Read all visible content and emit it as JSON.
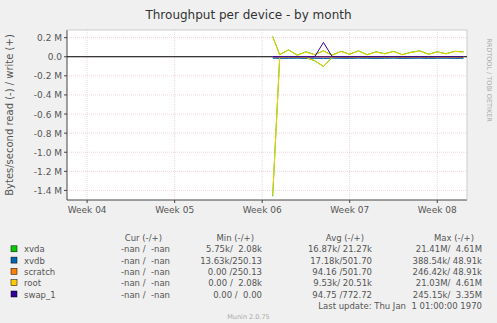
{
  "chart_data": {
    "type": "line",
    "title": "Throughput per device - by month",
    "y_label": "Bytes/second read (-) / write (+)",
    "credit": "RRDTOOL / TOBI OETIKER",
    "last_update": "Last update: Thu Jan  1 01:00:00 1970",
    "footer": "Munin 2.0.75",
    "grid": true,
    "legend": "bottom",
    "stat_headers": [
      "Cur (-/+)",
      "Min (-/+)",
      "Avg (-/+)",
      "Max (-/+)"
    ],
    "xlim": [
      3.77,
      8.34
    ],
    "xticks": [
      {
        "value": 4,
        "label": "Week 04"
      },
      {
        "value": 5,
        "label": "Week 05"
      },
      {
        "value": 6,
        "label": "Week 06"
      },
      {
        "value": 7,
        "label": "Week 07"
      },
      {
        "value": 8,
        "label": "Week 08"
      }
    ],
    "ylim": [
      -1500000,
      280000
    ],
    "yticks": [
      {
        "value": 200000,
        "label": "0.2 M"
      },
      {
        "value": 0,
        "label": "0.0"
      },
      {
        "value": -200000,
        "label": "-0.2 M"
      },
      {
        "value": -400000,
        "label": "-0.4 M"
      },
      {
        "value": -600000,
        "label": "-0.6 M"
      },
      {
        "value": -800000,
        "label": "-0.8 M"
      },
      {
        "value": -1000000,
        "label": "-1.0 M"
      },
      {
        "value": -1200000,
        "label": "-1.2 M"
      },
      {
        "value": -1400000,
        "label": "-1.4 M"
      }
    ],
    "x": [
      6.12,
      6.2,
      6.3,
      6.4,
      6.5,
      6.6,
      6.7,
      6.8,
      6.9,
      7.0,
      7.1,
      7.2,
      7.3,
      7.4,
      7.5,
      7.6,
      7.7,
      7.8,
      7.9,
      8.0,
      8.1,
      8.2,
      8.3
    ],
    "series": [
      {
        "name": "xvda",
        "color": "#00cc00",
        "values": [
          212000,
          22000,
          72000,
          17000,
          52000,
          22000,
          62000,
          17000,
          57000,
          27000,
          62000,
          22000,
          52000,
          32000,
          57000,
          22000,
          47000,
          62000,
          27000,
          52000,
          32000,
          57000,
          52000
        ],
        "read": [
          -1460000,
          -12000,
          -7000,
          -5000,
          -10000,
          -42000,
          -102000,
          -7000,
          -5000,
          -6000,
          -8000,
          -5000,
          -7000,
          -6000,
          -8000,
          -5000,
          -7000,
          -6000,
          -5000,
          -8000,
          -6000,
          -7000,
          -6000
        ],
        "stats": [
          "-nan /  -nan",
          "5.75k/  2.08k",
          "16.87k/ 21.27k",
          "21.41M/  4.61M"
        ]
      },
      {
        "name": "xvdb",
        "color": "#0066b3",
        "values": [
          500,
          400,
          600,
          500,
          500,
          400,
          600,
          500,
          500,
          400,
          600,
          500,
          500,
          400,
          600,
          500,
          500,
          400,
          600,
          500,
          500,
          400,
          600
        ],
        "read": [
          -15000,
          -18000,
          -17000,
          -16000,
          -18000,
          -17000,
          -19000,
          -16000,
          -17000,
          -18000,
          -16000,
          -17000,
          -18000,
          -17000,
          -16000,
          -18000,
          -17000,
          -16000,
          -18000,
          -17000,
          -16000,
          -18000,
          -17000
        ],
        "stats": [
          "-nan /  -nan",
          "13.63k/250.13",
          "17.18k/501.70",
          "388.54k/ 48.91k"
        ]
      },
      {
        "name": "scratch",
        "color": "#ff8000",
        "values": [
          500,
          500,
          500,
          500,
          500,
          500,
          500,
          500,
          500,
          500,
          500,
          500,
          500,
          500,
          500,
          500,
          500,
          500,
          500,
          500,
          500,
          500,
          500
        ],
        "read": [
          -100,
          -100,
          -100,
          -100,
          -100,
          -100,
          -100,
          -100,
          -100,
          -100,
          -100,
          -100,
          -100,
          -100,
          -100,
          -100,
          -100,
          -100,
          -100,
          -100,
          -100,
          -100,
          -100
        ],
        "stats": [
          "-nan /  -nan",
          "0.00 /250.13",
          "94.16 /501.70",
          "246.42k/ 48.91k"
        ]
      },
      {
        "name": "root",
        "color": "#ffcc00",
        "values": [
          210000,
          20000,
          70000,
          15000,
          50000,
          20000,
          60000,
          15000,
          55000,
          25000,
          60000,
          20000,
          50000,
          30000,
          55000,
          20000,
          45000,
          60000,
          25000,
          50000,
          30000,
          55000,
          50000
        ],
        "read": [
          -1450000,
          -10000,
          -5000,
          -3000,
          -8000,
          -40000,
          -100000,
          -5000,
          -3000,
          -4000,
          -6000,
          -3000,
          -5000,
          -4000,
          -6000,
          -3000,
          -5000,
          -4000,
          -3000,
          -6000,
          -4000,
          -5000,
          -4000
        ],
        "stats": [
          "-nan /  -nan",
          "0.00 /  2.08k",
          "9.53k/ 20.51k",
          "21.03M/  4.61M"
        ]
      },
      {
        "name": "swap_1",
        "color": "#330099",
        "values": [
          0,
          0,
          0,
          0,
          0,
          0,
          150000,
          0,
          0,
          0,
          0,
          0,
          0,
          0,
          0,
          0,
          0,
          0,
          0,
          0,
          0,
          0,
          0
        ],
        "read": [
          0,
          0,
          0,
          0,
          0,
          0,
          0,
          0,
          0,
          0,
          0,
          0,
          0,
          0,
          0,
          0,
          0,
          0,
          0,
          0,
          0,
          0,
          0
        ],
        "stats": [
          "-nan /  -nan",
          "0.00 /  0.00",
          "94.75 /772.72",
          "245.15k/  3.35M"
        ]
      }
    ]
  }
}
